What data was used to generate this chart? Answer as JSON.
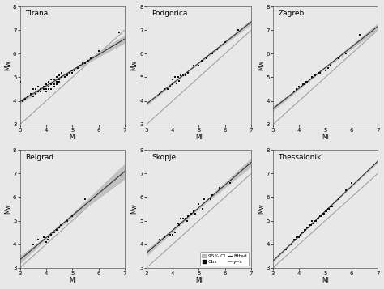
{
  "panels": [
    {
      "title": "Tirana",
      "ml": [
        3.0,
        3.1,
        3.2,
        3.3,
        3.4,
        3.5,
        3.5,
        3.6,
        3.6,
        3.7,
        3.7,
        3.8,
        3.8,
        3.9,
        3.9,
        4.0,
        4.0,
        4.0,
        4.1,
        4.1,
        4.1,
        4.2,
        4.2,
        4.2,
        4.3,
        4.3,
        4.3,
        4.4,
        4.4,
        4.4,
        4.5,
        4.5,
        4.5,
        4.6,
        4.6,
        4.7,
        4.8,
        4.9,
        5.0,
        5.0,
        5.1,
        5.2,
        5.3,
        5.4,
        5.5,
        5.6,
        5.7,
        6.0,
        6.8
      ],
      "mw": [
        4.8,
        4.0,
        4.1,
        4.2,
        4.3,
        4.2,
        4.5,
        4.3,
        4.5,
        4.4,
        4.6,
        4.4,
        4.5,
        4.5,
        4.6,
        4.4,
        4.5,
        4.7,
        4.5,
        4.6,
        4.8,
        4.5,
        4.7,
        4.9,
        4.6,
        4.7,
        4.9,
        4.7,
        4.8,
        5.0,
        4.8,
        4.9,
        5.1,
        5.0,
        5.2,
        5.0,
        5.1,
        5.2,
        5.2,
        5.3,
        5.3,
        5.4,
        5.5,
        5.6,
        5.6,
        5.7,
        5.8,
        6.1,
        6.9
      ],
      "xlim": [
        3,
        7
      ],
      "ylim": [
        3,
        8
      ],
      "fit_slope": 0.88,
      "fit_intercept": 1.3
    },
    {
      "title": "Podgorica",
      "ml": [
        3.5,
        3.6,
        3.7,
        3.8,
        3.9,
        4.0,
        4.0,
        4.1,
        4.15,
        4.2,
        4.25,
        4.3,
        4.4,
        4.5,
        4.6,
        4.8,
        5.0,
        5.1,
        5.3,
        5.5,
        5.7,
        6.0,
        6.5
      ],
      "mw": [
        4.3,
        4.4,
        4.5,
        4.5,
        4.6,
        4.7,
        4.9,
        5.0,
        4.75,
        5.0,
        4.85,
        5.1,
        5.1,
        5.1,
        5.2,
        5.5,
        5.5,
        5.7,
        5.8,
        6.0,
        6.2,
        6.5,
        7.0
      ],
      "xlim": [
        3,
        7
      ],
      "ylim": [
        3,
        8
      ],
      "fit_slope": 0.95,
      "fit_intercept": 0.9
    },
    {
      "title": "Zagreb",
      "ml": [
        3.8,
        3.9,
        4.0,
        4.1,
        4.15,
        4.2,
        4.25,
        4.3,
        4.4,
        4.5,
        4.6,
        4.75,
        4.8,
        5.0,
        5.1,
        5.2,
        5.5,
        5.8,
        6.3
      ],
      "mw": [
        4.4,
        4.5,
        4.6,
        4.6,
        4.7,
        4.7,
        4.8,
        4.8,
        4.9,
        5.0,
        5.1,
        5.2,
        5.2,
        5.3,
        5.4,
        5.5,
        5.8,
        6.0,
        6.8
      ],
      "xlim": [
        3,
        7
      ],
      "ylim": [
        3,
        8
      ],
      "fit_slope": 0.96,
      "fit_intercept": 0.75
    },
    {
      "title": "Belgrad",
      "ml": [
        3.5,
        3.7,
        3.9,
        4.0,
        4.05,
        4.1,
        4.2,
        4.25,
        4.3,
        4.4,
        4.5,
        4.55,
        4.6,
        4.8,
        5.0,
        5.5
      ],
      "mw": [
        4.0,
        4.2,
        4.3,
        4.1,
        4.2,
        4.3,
        4.4,
        4.5,
        4.5,
        4.6,
        4.7,
        4.8,
        4.8,
        5.0,
        5.2,
        5.9
      ],
      "xlim": [
        3,
        7
      ],
      "ylim": [
        3,
        8
      ],
      "fit_slope": 1.0,
      "fit_intercept": 0.5
    },
    {
      "title": "Skopje",
      "ml": [
        3.5,
        3.7,
        3.9,
        4.0,
        4.1,
        4.2,
        4.25,
        4.3,
        4.4,
        4.5,
        4.55,
        4.6,
        4.7,
        4.8,
        4.85,
        5.0,
        5.15,
        5.2,
        5.45,
        5.5,
        5.8,
        6.2
      ],
      "mw": [
        4.2,
        4.3,
        4.4,
        4.4,
        4.5,
        4.9,
        4.8,
        5.1,
        5.1,
        5.1,
        5.0,
        5.2,
        5.3,
        5.4,
        5.3,
        5.7,
        5.5,
        5.9,
        5.9,
        6.1,
        6.4,
        6.6
      ],
      "xlim": [
        3,
        7
      ],
      "ylim": [
        3,
        8
      ],
      "fit_slope": 0.97,
      "fit_intercept": 0.85
    },
    {
      "title": "Thessaloniki",
      "ml": [
        3.5,
        3.7,
        3.8,
        3.85,
        3.9,
        3.95,
        4.0,
        4.05,
        4.1,
        4.15,
        4.2,
        4.25,
        4.3,
        4.35,
        4.4,
        4.45,
        4.5,
        4.55,
        4.6,
        4.65,
        4.7,
        4.75,
        4.8,
        4.85,
        4.9,
        4.95,
        5.0,
        5.05,
        5.1,
        5.15,
        5.2,
        5.25,
        5.5,
        5.8,
        6.0
      ],
      "mw": [
        3.8,
        4.0,
        4.2,
        4.2,
        4.3,
        4.3,
        4.3,
        4.4,
        4.5,
        4.5,
        4.6,
        4.6,
        4.7,
        4.7,
        4.8,
        4.8,
        5.0,
        4.9,
        5.0,
        5.0,
        5.1,
        5.1,
        5.2,
        5.2,
        5.3,
        5.3,
        5.4,
        5.4,
        5.5,
        5.5,
        5.6,
        5.6,
        5.9,
        6.3,
        6.6
      ],
      "xlim": [
        3,
        7
      ],
      "ylim": [
        3,
        8
      ],
      "fit_slope": 1.0,
      "fit_intercept": 0.3
    }
  ],
  "xlabel": "Ml",
  "ylabel": "Mw",
  "background_color": "#e8e8e8",
  "panel_bg": "#e8e8e8",
  "dot_color": "#111111",
  "fit_line_color": "#333333",
  "yx_line_color": "#999999",
  "ci_color": "#c0c0c0",
  "yticks": [
    3,
    4,
    5,
    6,
    7,
    8
  ],
  "xticks": [
    3,
    4,
    5,
    6,
    7
  ],
  "legend_labels": [
    "95% CI",
    "Obs",
    "Fitted",
    "y=x"
  ]
}
